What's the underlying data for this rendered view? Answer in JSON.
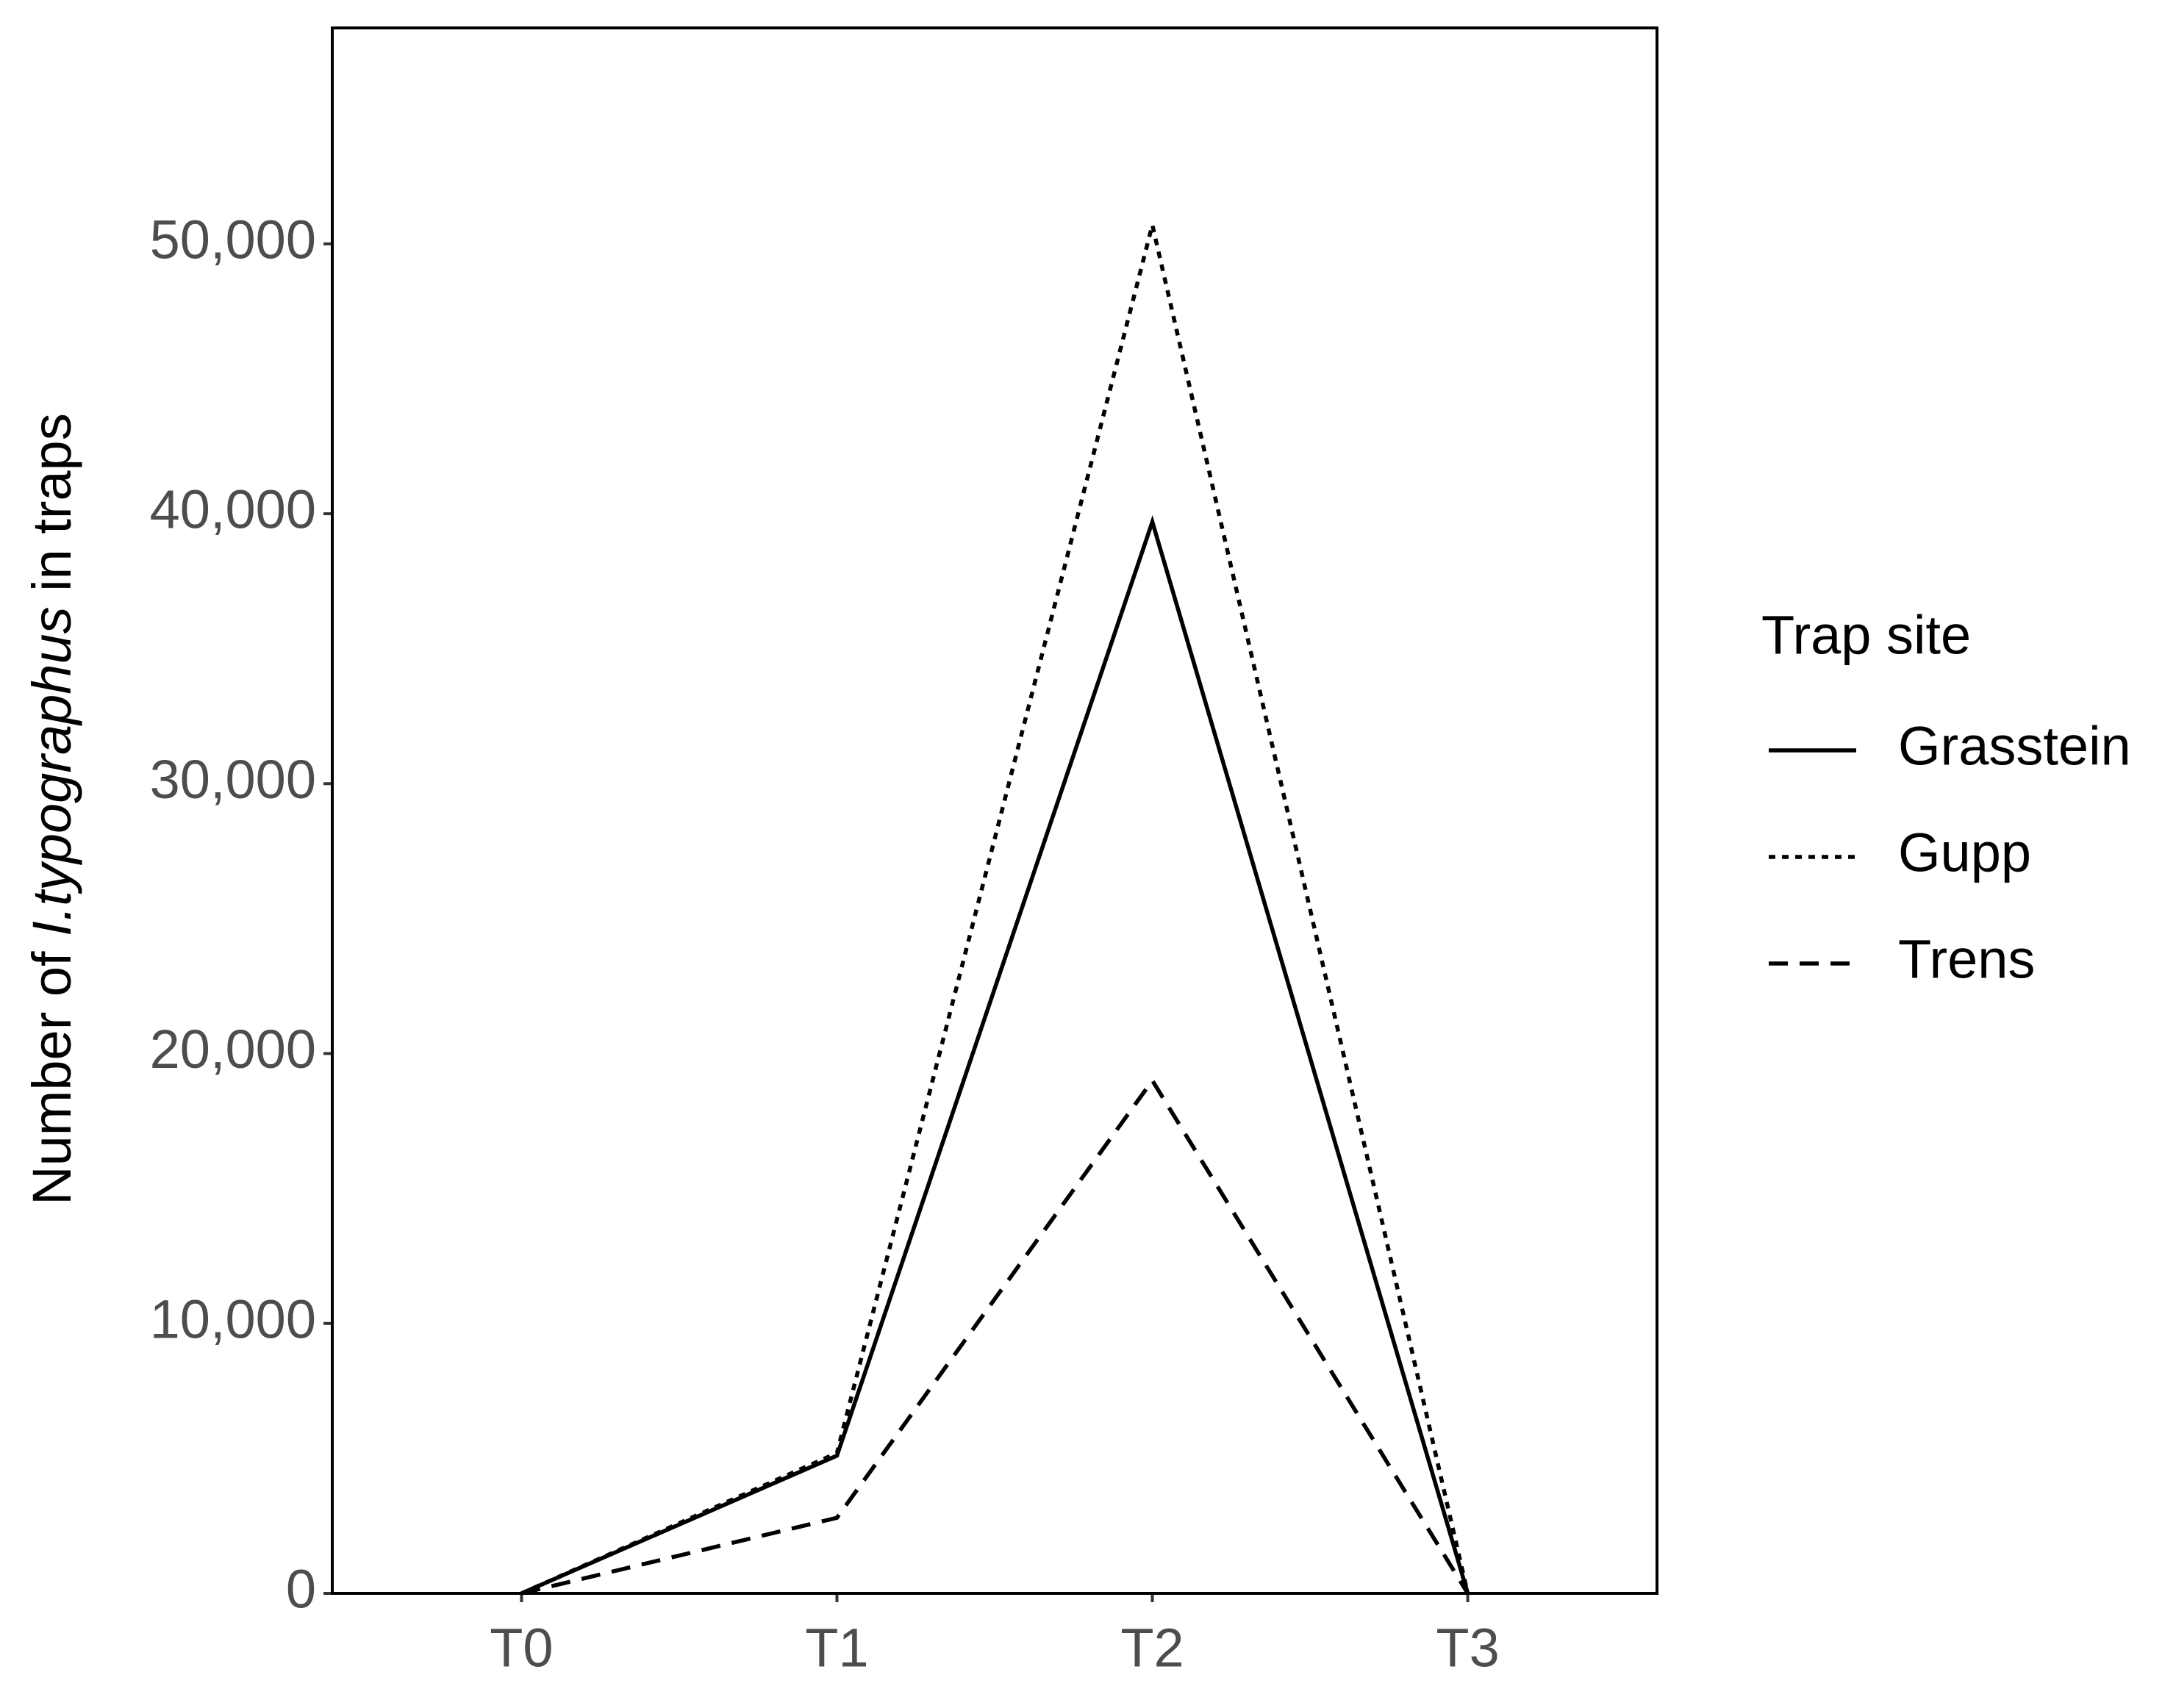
{
  "chart_data": {
    "type": "line",
    "y_label": {
      "before": "Number of ",
      "italic": "I.typographus",
      "after": " in traps"
    },
    "categories": [
      "T0",
      "T1",
      "T2",
      "T3"
    ],
    "series": [
      {
        "name": "Grasstein",
        "color": "#000000",
        "linetype": "solid",
        "values": [
          0,
          5100,
          39700,
          0
        ]
      },
      {
        "name": "Gupp",
        "color": "#000000",
        "linetype": "dotted",
        "values": [
          0,
          5200,
          50700,
          0
        ]
      },
      {
        "name": "Trens",
        "color": "#000000",
        "linetype": "dashed",
        "values": [
          0,
          2800,
          19000,
          0
        ]
      }
    ],
    "ylim": [
      0,
      58000
    ],
    "yticks": [
      0,
      {
        "value": 10000,
        "label": "10,000"
      },
      {
        "value": 20000,
        "label": "20,000"
      },
      {
        "value": 30000,
        "label": "30,000"
      },
      {
        "value": 40000,
        "label": "40,000"
      },
      {
        "value": 50000,
        "label": "50,000"
      }
    ],
    "legend_title": "Trap site",
    "legend": "right",
    "grid": false
  }
}
